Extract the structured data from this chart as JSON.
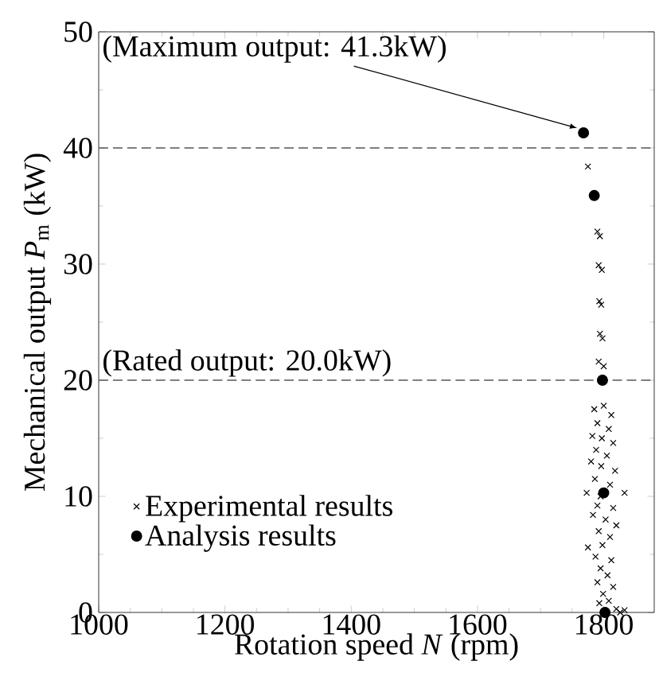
{
  "chart_data": {
    "type": "scatter",
    "xlabel": "Rotation speed *N* (rpm)",
    "ylabel": "Mechanical output *P*$_{m}$ (kW)",
    "xlim": [
      1000,
      1880
    ],
    "xticks": [
      1000,
      1200,
      1400,
      1600,
      1800
    ],
    "ylim": [
      0,
      50
    ],
    "yticks": [
      0,
      10,
      20,
      30,
      40,
      50
    ],
    "grid": false,
    "legend": "bottom left",
    "series": [
      {
        "name": "Experimental results",
        "color": "#000000",
        "marker": "cross",
        "x": [
          1775,
          1790,
          1794,
          1792,
          1797,
          1793,
          1796,
          1794,
          1798,
          1792,
          1800,
          1785,
          1800,
          1812,
          1790,
          1808,
          1782,
          1797,
          1815,
          1788,
          1805,
          1780,
          1796,
          1818,
          1786,
          1810,
          1773,
          1795,
          1833,
          1790,
          1815,
          1783,
          1803,
          1820,
          1792,
          1810,
          1775,
          1798,
          1787,
          1812,
          1795,
          1806,
          1790,
          1815,
          1799,
          1808,
          1793,
          1820,
          1833,
          1826
        ],
        "values": [
          38.4,
          32.8,
          32.4,
          29.9,
          29.5,
          26.8,
          26.5,
          24.0,
          23.6,
          21.6,
          21.2,
          17.5,
          17.8,
          17.0,
          16.3,
          15.8,
          15.2,
          15.0,
          14.6,
          14.0,
          13.5,
          13.0,
          12.6,
          12.2,
          11.5,
          11.0,
          10.3,
          10.0,
          10.3,
          9.2,
          9.0,
          8.4,
          8.0,
          7.5,
          7.0,
          6.5,
          5.6,
          5.8,
          4.8,
          4.5,
          3.8,
          3.2,
          2.6,
          2.2,
          1.6,
          1.0,
          0.8,
          0.3,
          0.2,
          0.0
        ]
      },
      {
        "name": "Analysis results",
        "color": "#000000",
        "marker": "circle",
        "x": [
          1768,
          1785,
          1798,
          1800,
          1802
        ],
        "values": [
          41.3,
          35.9,
          20.0,
          10.3,
          0.0
        ]
      }
    ],
    "ref_lines": [
      {
        "axis": "y",
        "value": 40,
        "line_style": "dashed"
      },
      {
        "axis": "y",
        "value": 20,
        "label": "(Rated output: 20.0kW)",
        "line_style": "dashed"
      }
    ],
    "annotations": [
      {
        "text": "(Maximum output: 41.3kW)",
        "x": 1768,
        "y": 41.3
      }
    ]
  }
}
